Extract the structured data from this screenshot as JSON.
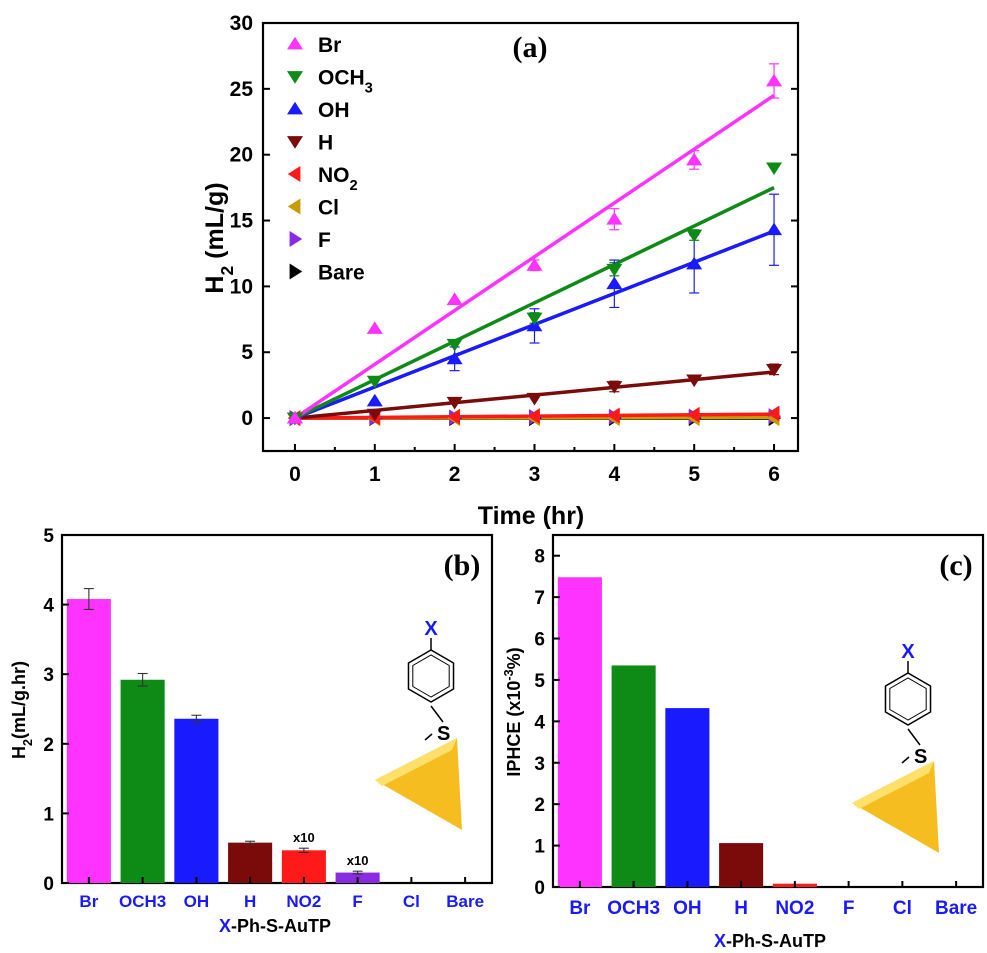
{
  "chart_data": [
    {
      "type": "scatter",
      "panel_label": "(a)",
      "xlabel": "Time (hr)",
      "ylabel": "H2 (mL/g)",
      "xlim": [
        -0.4,
        6.3
      ],
      "ylim": [
        -2.5,
        30
      ],
      "xticks": [
        "0",
        "1",
        "2",
        "3",
        "4",
        "5",
        "6"
      ],
      "yticks": [
        "0",
        "5",
        "10",
        "15",
        "20",
        "25",
        "30"
      ],
      "legend_position": "top-left",
      "fit_lines": true,
      "x": [
        0,
        1,
        2,
        3,
        4,
        5,
        6
      ],
      "series": [
        {
          "name": "Br",
          "marker": "triangle-up",
          "color": "#FF33FF",
          "values": [
            0,
            6.8,
            9.0,
            11.6,
            15.1,
            19.6,
            25.6
          ],
          "err": [
            0,
            0,
            0,
            0.4,
            0.8,
            0.7,
            1.3
          ],
          "fit_end": 24.5
        },
        {
          "name": "OCH3",
          "name_main": "OCH",
          "name_sub": "3",
          "marker": "triangle-down",
          "color": "#0E8A16",
          "values": [
            0,
            2.8,
            5.6,
            7.6,
            11.3,
            13.9,
            19.0
          ],
          "err": [
            0,
            0,
            0,
            0.4,
            0.5,
            0.4,
            0
          ],
          "fit_end": 17.5
        },
        {
          "name": "OH",
          "marker": "triangle-up",
          "color": "#1A1AFF",
          "values": [
            0,
            1.3,
            4.5,
            7.0,
            10.2,
            11.7,
            14.3
          ],
          "err": [
            0,
            0,
            0.9,
            1.3,
            1.8,
            2.2,
            2.7
          ],
          "fit_end": 14.2
        },
        {
          "name": "H",
          "marker": "triangle-down",
          "color": "#7B0A0A",
          "values": [
            0,
            0.3,
            1.2,
            1.5,
            2.4,
            2.9,
            3.7
          ],
          "err": [
            0,
            0,
            0,
            0,
            0.4,
            0,
            0.4
          ],
          "fit_end": 3.5
        },
        {
          "name": "NO2",
          "name_main": "NO",
          "name_sub": "2",
          "marker": "triangle-left",
          "color": "#FF1A1A",
          "values": [
            0,
            0.05,
            0.1,
            0.15,
            0.2,
            0.25,
            0.35
          ],
          "err": [
            0,
            0,
            0,
            0,
            0,
            0,
            0
          ],
          "fit_end": 0.3
        },
        {
          "name": "Cl",
          "marker": "triangle-left",
          "color": "#C89B00",
          "values": [
            0,
            0,
            0,
            0,
            0,
            0,
            0
          ],
          "err": [
            0,
            0,
            0,
            0,
            0,
            0,
            0
          ],
          "fit_end": 0.05
        },
        {
          "name": "F",
          "marker": "triangle-right",
          "color": "#8A2BE2",
          "values": [
            0,
            0.03,
            0.05,
            0.08,
            0.1,
            0.12,
            0.15
          ],
          "err": [
            0,
            0,
            0,
            0,
            0,
            0,
            0
          ],
          "fit_end": 0.1
        },
        {
          "name": "Bare",
          "marker": "triangle-right",
          "color": "#000000",
          "values": [
            0,
            0,
            0,
            0,
            0,
            0,
            0
          ],
          "err": [
            0,
            0,
            0,
            0,
            0,
            0,
            0
          ],
          "fit_end": 0
        }
      ]
    },
    {
      "type": "bar",
      "panel_label": "(b)",
      "xlabel_prefix": "X",
      "xlabel_rest": "-Ph-S-AuTP",
      "ylabel": "H2(mL/g.hr)",
      "ylim": [
        0,
        5
      ],
      "yticks": [
        "0",
        "1",
        "2",
        "3",
        "4",
        "5"
      ],
      "categories": [
        "Br",
        "OCH3",
        "OH",
        "H",
        "NO2",
        "F",
        "Cl",
        "Bare"
      ],
      "colors": [
        "#FF33FF",
        "#0E8A16",
        "#1A1AFF",
        "#7B0A0A",
        "#FF1A1A",
        "#8A2BE2",
        "#C89B00",
        "#000000"
      ],
      "values": [
        4.08,
        2.92,
        2.36,
        0.58,
        0.47,
        0.15,
        0,
        0
      ],
      "err": [
        0.15,
        0.09,
        0.05,
        0.02,
        0.03,
        0.02,
        0,
        0
      ],
      "annotations": [
        "",
        "",
        "",
        "",
        "x10",
        "x10",
        "",
        ""
      ],
      "structure_substituent": "X",
      "structure_atom": "S"
    },
    {
      "type": "bar",
      "panel_label": "(c)",
      "xlabel_prefix": "X",
      "xlabel_rest": "-Ph-S-AuTP",
      "ylabel": "IPHCE (x10-3%)",
      "ylim": [
        0,
        8.5
      ],
      "yticks": [
        "0",
        "1",
        "2",
        "3",
        "4",
        "5",
        "6",
        "7",
        "8"
      ],
      "categories": [
        "Br",
        "OCH3",
        "OH",
        "H",
        "NO2",
        "F",
        "Cl",
        "Bare"
      ],
      "colors": [
        "#FF33FF",
        "#0E8A16",
        "#1A1AFF",
        "#7B0A0A",
        "#FF1A1A",
        "#8A2BE2",
        "#C89B00",
        "#000000"
      ],
      "values": [
        7.48,
        5.35,
        4.32,
        1.06,
        0.08,
        0,
        0,
        0
      ],
      "structure_substituent": "X",
      "structure_atom": "S"
    }
  ]
}
